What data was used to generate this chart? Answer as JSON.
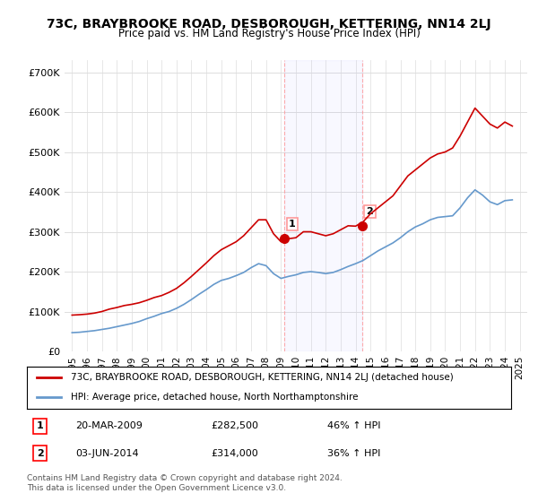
{
  "title": "73C, BRAYBROOKE ROAD, DESBOROUGH, KETTERING, NN14 2LJ",
  "subtitle": "Price paid vs. HM Land Registry's House Price Index (HPI)",
  "background_color": "#ffffff",
  "ylim": [
    0,
    730000
  ],
  "yticks": [
    0,
    100000,
    200000,
    300000,
    400000,
    500000,
    600000,
    700000
  ],
  "ytick_labels": [
    "£0",
    "£100K",
    "£200K",
    "£300K",
    "£400K",
    "£500K",
    "£600K",
    "£700K"
  ],
  "red_color": "#cc0000",
  "blue_color": "#6699cc",
  "purchase1": {
    "year": 2009.22,
    "price": 282500,
    "label": "1"
  },
  "purchase2": {
    "year": 2014.42,
    "price": 314000,
    "label": "2"
  },
  "annotation1": {
    "date": "20-MAR-2009",
    "price": "£282,500",
    "pct": "46% ↑ HPI"
  },
  "annotation2": {
    "date": "03-JUN-2014",
    "price": "£314,000",
    "pct": "36% ↑ HPI"
  },
  "legend_line1": "73C, BRAYBROOKE ROAD, DESBOROUGH, KETTERING, NN14 2LJ (detached house)",
  "legend_line2": "HPI: Average price, detached house, North Northamptonshire",
  "footnote": "Contains HM Land Registry data © Crown copyright and database right 2024.\nThis data is licensed under the Open Government Licence v3.0.",
  "red_x": [
    1995,
    1995.5,
    1996,
    1996.5,
    1997,
    1997.5,
    1998,
    1998.5,
    1999,
    1999.5,
    2000,
    2000.5,
    2001,
    2001.5,
    2002,
    2002.5,
    2003,
    2003.5,
    2004,
    2004.5,
    2005,
    2005.5,
    2006,
    2006.5,
    2007,
    2007.5,
    2008,
    2008.5,
    2009,
    2009.5,
    2010,
    2010.5,
    2011,
    2011.5,
    2012,
    2012.5,
    2013,
    2013.5,
    2014,
    2014.5,
    2015,
    2015.5,
    2016,
    2016.5,
    2017,
    2017.5,
    2018,
    2018.5,
    2019,
    2019.5,
    2020,
    2020.5,
    2021,
    2021.5,
    2022,
    2022.5,
    2023,
    2023.5,
    2024,
    2024.5
  ],
  "red_y": [
    91000,
    92000,
    93500,
    96000,
    100000,
    106000,
    110000,
    115000,
    118000,
    122000,
    128000,
    135000,
    140000,
    148000,
    158000,
    172000,
    188000,
    205000,
    222000,
    240000,
    255000,
    265000,
    275000,
    290000,
    310000,
    330000,
    330000,
    295000,
    275000,
    282500,
    285000,
    300000,
    300000,
    295000,
    290000,
    295000,
    305000,
    315000,
    314000,
    325000,
    345000,
    360000,
    375000,
    390000,
    415000,
    440000,
    455000,
    470000,
    485000,
    495000,
    500000,
    510000,
    540000,
    575000,
    610000,
    590000,
    570000,
    560000,
    575000,
    565000
  ],
  "blue_x": [
    1995,
    1995.5,
    1996,
    1996.5,
    1997,
    1997.5,
    1998,
    1998.5,
    1999,
    1999.5,
    2000,
    2000.5,
    2001,
    2001.5,
    2002,
    2002.5,
    2003,
    2003.5,
    2004,
    2004.5,
    2005,
    2005.5,
    2006,
    2006.5,
    2007,
    2007.5,
    2008,
    2008.5,
    2009,
    2009.5,
    2010,
    2010.5,
    2011,
    2011.5,
    2012,
    2012.5,
    2013,
    2013.5,
    2014,
    2014.5,
    2015,
    2015.5,
    2016,
    2016.5,
    2017,
    2017.5,
    2018,
    2018.5,
    2019,
    2019.5,
    2020,
    2020.5,
    2021,
    2021.5,
    2022,
    2022.5,
    2023,
    2023.5,
    2024,
    2024.5
  ],
  "blue_y": [
    47000,
    48000,
    50000,
    52000,
    55000,
    58000,
    62000,
    66000,
    70000,
    75000,
    82000,
    88000,
    95000,
    100000,
    108000,
    118000,
    130000,
    143000,
    155000,
    168000,
    178000,
    183000,
    190000,
    198000,
    210000,
    220000,
    215000,
    195000,
    183000,
    188000,
    192000,
    198000,
    200000,
    198000,
    195000,
    198000,
    205000,
    213000,
    220000,
    228000,
    240000,
    252000,
    262000,
    272000,
    285000,
    300000,
    312000,
    320000,
    330000,
    336000,
    338000,
    340000,
    360000,
    385000,
    405000,
    392000,
    375000,
    368000,
    378000,
    380000
  ],
  "xlim_left": 1994.5,
  "xlim_right": 2025.5,
  "xticks": [
    1995,
    1996,
    1997,
    1998,
    1999,
    2000,
    2001,
    2002,
    2003,
    2004,
    2005,
    2006,
    2007,
    2008,
    2009,
    2010,
    2011,
    2012,
    2013,
    2014,
    2015,
    2016,
    2017,
    2018,
    2019,
    2020,
    2021,
    2022,
    2023,
    2024,
    2025
  ]
}
